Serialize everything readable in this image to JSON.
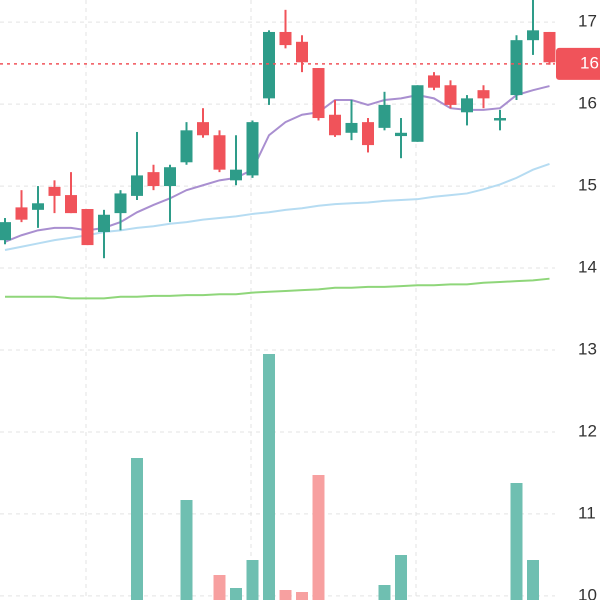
{
  "chart_data": {
    "type": "candlestick",
    "ylim": [
      9.95,
      17.27
    ],
    "yticks": [
      10,
      11,
      12,
      13,
      14,
      15,
      16,
      17
    ],
    "grid": true,
    "up_color": "#2e9c89",
    "down_color": "#f0535a",
    "open": [
      14.34,
      14.74,
      14.71,
      14.99,
      14.89,
      14.72,
      14.44,
      14.67,
      14.88,
      15.17,
      15.0,
      15.29,
      15.78,
      15.62,
      15.07,
      15.13,
      16.07,
      16.88,
      16.76,
      16.44,
      15.87,
      15.65,
      15.78,
      15.71,
      15.61,
      15.54,
      16.35,
      16.23,
      15.9,
      16.17,
      15.8,
      16.11,
      16.78,
      16.88
    ],
    "high": [
      14.61,
      14.95,
      15.0,
      15.07,
      15.17,
      14.72,
      14.71,
      14.95,
      15.66,
      15.26,
      15.26,
      15.78,
      15.95,
      15.68,
      15.62,
      15.8,
      16.9,
      17.15,
      16.84,
      16.44,
      16.05,
      16.05,
      15.83,
      16.15,
      15.83,
      16.23,
      16.39,
      16.29,
      16.11,
      16.23,
      15.93,
      16.84,
      17.27,
      16.88
    ],
    "low": [
      14.29,
      14.56,
      14.49,
      14.67,
      14.67,
      14.28,
      14.12,
      14.46,
      14.83,
      14.95,
      14.56,
      15.26,
      15.59,
      15.17,
      15.01,
      15.1,
      15.99,
      16.68,
      16.39,
      15.8,
      15.6,
      15.56,
      15.41,
      15.68,
      15.34,
      15.54,
      16.17,
      15.95,
      15.74,
      15.95,
      15.68,
      16.05,
      16.6,
      16.48
    ],
    "close": [
      14.56,
      14.59,
      14.79,
      14.88,
      14.67,
      14.28,
      14.65,
      14.91,
      15.13,
      15.0,
      15.23,
      15.68,
      15.62,
      15.2,
      15.2,
      15.78,
      16.88,
      16.72,
      16.51,
      15.83,
      15.62,
      15.77,
      15.5,
      15.99,
      15.65,
      16.23,
      16.2,
      15.99,
      16.07,
      16.07,
      15.83,
      16.78,
      16.9,
      16.51
    ],
    "series": [
      {
        "color": "#a98fd0",
        "values": [
          14.32,
          14.4,
          14.46,
          14.49,
          14.49,
          14.46,
          14.49,
          14.56,
          14.68,
          14.77,
          14.85,
          14.95,
          15.01,
          15.07,
          15.1,
          15.2,
          15.62,
          15.78,
          15.87,
          15.9,
          16.05,
          16.05,
          15.99,
          16.05,
          16.07,
          16.11,
          16.07,
          15.95,
          15.93,
          15.93,
          15.95,
          16.11,
          16.17,
          16.22
        ]
      },
      {
        "color": "#b6dcf2",
        "values": [
          14.22,
          14.26,
          14.3,
          14.34,
          14.37,
          14.4,
          14.44,
          14.46,
          14.49,
          14.51,
          14.54,
          14.56,
          14.59,
          14.61,
          14.63,
          14.66,
          14.68,
          14.71,
          14.73,
          14.76,
          14.78,
          14.79,
          14.8,
          14.82,
          14.83,
          14.84,
          14.87,
          14.89,
          14.91,
          14.96,
          15.02,
          15.1,
          15.2,
          15.27
        ]
      },
      {
        "color": "#8fd67a",
        "values": [
          13.65,
          13.65,
          13.65,
          13.65,
          13.63,
          13.63,
          13.63,
          13.65,
          13.65,
          13.66,
          13.66,
          13.67,
          13.67,
          13.68,
          13.68,
          13.7,
          13.71,
          13.72,
          13.73,
          13.74,
          13.76,
          13.76,
          13.77,
          13.77,
          13.78,
          13.79,
          13.79,
          13.8,
          13.8,
          13.82,
          13.83,
          13.84,
          13.85,
          13.87
        ]
      }
    ],
    "volume": [
      null,
      null,
      null,
      null,
      null,
      null,
      null,
      null,
      142,
      null,
      null,
      100,
      null,
      25,
      12,
      40,
      246,
      10,
      8,
      125,
      null,
      null,
      null,
      15,
      45,
      null,
      null,
      null,
      null,
      null,
      null,
      117,
      40,
      null
    ],
    "vlim": [
      0,
      250
    ],
    "volume_up_color": "#6fbfb1",
    "volume_down_color": "#f7a0a0",
    "last_price": {
      "value": 16.49,
      "label": "16"
    }
  }
}
